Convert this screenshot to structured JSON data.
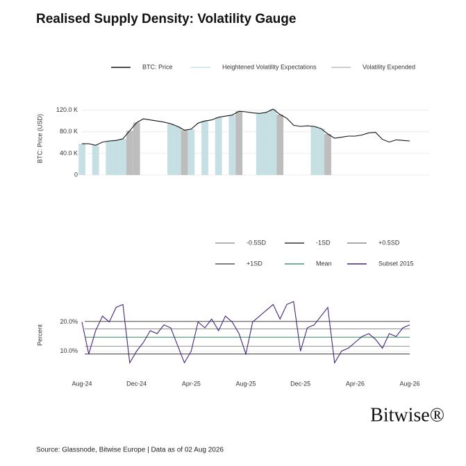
{
  "title": "Realised Supply Density: Volatility Gauge",
  "source": "Source: Glassnode, Bitwise Europe | Data as of 02 Aug 2026",
  "brand": "Bitwise®",
  "chart_data": [
    {
      "type": "line",
      "ylabel": "BTC: Price (USD)",
      "categories": [
        null,
        null,
        null,
        null,
        null,
        null,
        null,
        null,
        null,
        null,
        null,
        null,
        null,
        null,
        null,
        null,
        null,
        null,
        null,
        null,
        null,
        null,
        null,
        null,
        null,
        null,
        null,
        null,
        null,
        null,
        null,
        null,
        null,
        null,
        null,
        null,
        null,
        null,
        null,
        null,
        null,
        null,
        null,
        null,
        null,
        null,
        null,
        null,
        null
      ],
      "ylim": [
        0,
        135000
      ],
      "yticks": [
        0,
        {
          "value": 40000,
          "label": "40.0 K"
        },
        {
          "value": 80000,
          "label": "80.0 K"
        },
        {
          "value": 120000,
          "label": "120.0 K"
        }
      ],
      "grid": true,
      "series": [
        {
          "name": "BTC: Price",
          "color": "#111111",
          "type": "line",
          "values": [
            58000,
            58000,
            55000,
            61000,
            63000,
            64000,
            67000,
            82000,
            97000,
            104000,
            102000,
            100000,
            98000,
            95000,
            90000,
            83000,
            85000,
            96000,
            100000,
            102000,
            107000,
            109000,
            111000,
            118000,
            117000,
            115000,
            114000,
            116000,
            122000,
            112000,
            105000,
            92000,
            90000,
            91000,
            90000,
            86000,
            76000,
            68000,
            70000,
            72000,
            72000,
            74000,
            78000,
            79000,
            66000,
            61000,
            65000,
            64000,
            63000
          ]
        },
        {
          "name": "Heightened Volatility Expectations",
          "color": "#c5dfe3",
          "type": "bar",
          "values": [
            58000,
            null,
            55000,
            null,
            63000,
            64000,
            67000,
            null,
            null,
            null,
            null,
            null,
            null,
            95000,
            90000,
            null,
            85000,
            null,
            100000,
            null,
            107000,
            null,
            111000,
            null,
            null,
            null,
            114000,
            116000,
            122000,
            null,
            null,
            null,
            null,
            null,
            90000,
            86000,
            null,
            null,
            null,
            null,
            null,
            null,
            null,
            null,
            null,
            null,
            null,
            null,
            null
          ]
        },
        {
          "name": "Volatility Expended",
          "color": "#bdbdbd",
          "type": "bar",
          "values": [
            null,
            null,
            null,
            null,
            null,
            null,
            null,
            82000,
            97000,
            null,
            null,
            null,
            null,
            null,
            null,
            83000,
            null,
            null,
            null,
            null,
            null,
            null,
            null,
            118000,
            null,
            null,
            null,
            null,
            null,
            112000,
            null,
            null,
            null,
            null,
            null,
            null,
            76000,
            null,
            null,
            null,
            null,
            null,
            null,
            null,
            null,
            null,
            null,
            null,
            null
          ]
        }
      ]
    },
    {
      "type": "line",
      "ylabel": "Percent",
      "categories": [
        "Aug-24",
        null,
        null,
        null,
        null,
        null,
        null,
        null,
        "Dec-24",
        null,
        null,
        null,
        null,
        null,
        null,
        null,
        "Apr-25",
        null,
        null,
        null,
        null,
        null,
        null,
        null,
        "Aug-25",
        null,
        null,
        null,
        null,
        null,
        null,
        null,
        "Dec-25",
        null,
        null,
        null,
        null,
        null,
        null,
        null,
        "Apr-26",
        null,
        null,
        null,
        null,
        null,
        null,
        null,
        "Aug-26"
      ],
      "ylim": [
        3,
        28
      ],
      "yticks": [
        {
          "value": 10,
          "label": "10.0%"
        },
        {
          "value": 20,
          "label": "20.0%"
        }
      ],
      "grid": true,
      "reference_lines": [
        {
          "name": "-0.5SD",
          "color": "#9a9a9a",
          "value": 11.7
        },
        {
          "name": "-1SD",
          "color": "#333333",
          "value": 9
        },
        {
          "name": "+0.5SD",
          "color": "#8a8a8a",
          "value": 17.6
        },
        {
          "name": "+1SD",
          "color": "#555555",
          "value": 20.2
        },
        {
          "name": "Mean",
          "color": "#3f9a6a",
          "value": 14.8
        }
      ],
      "series": [
        {
          "name": "Subset 2015",
          "color": "#45247a",
          "type": "line",
          "values": [
            20,
            9,
            17,
            22,
            20,
            25,
            26,
            6,
            10,
            13,
            17,
            16,
            19,
            18,
            12,
            6,
            10,
            20,
            18,
            21,
            17,
            22,
            20,
            16,
            9,
            20,
            22,
            24,
            26,
            21,
            26,
            27,
            10,
            18,
            19,
            22,
            25,
            6,
            10,
            11,
            13,
            15,
            16,
            14,
            11,
            16,
            15,
            18,
            19
          ]
        }
      ]
    }
  ]
}
